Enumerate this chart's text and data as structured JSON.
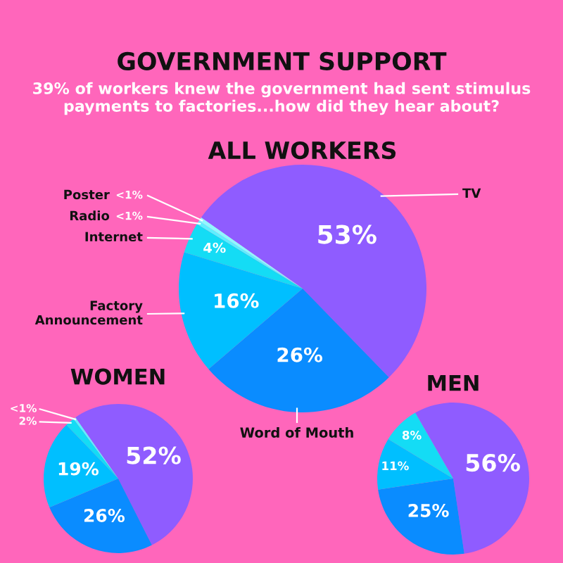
{
  "chart_data": [
    {
      "type": "pie",
      "title": "ALL WORKERS",
      "annotations": [
        "GOVERNMENT SUPPORT",
        "39% of workers knew the government had sent stimulus payments to factories...how did they hear about?"
      ],
      "categories": [
        "TV",
        "Word of Mouth",
        "Factory Announcement",
        "Internet",
        "Radio",
        "Poster"
      ],
      "values": [
        53,
        26,
        16,
        4,
        0.5,
        0.5
      ],
      "value_labels": [
        "53%",
        "26%",
        "16%",
        "4%",
        "<1%",
        "<1%"
      ],
      "colors": [
        "#8f5cff",
        "#0a8cff",
        "#00bfff",
        "#14dcf5",
        "#5ef0ff",
        "#8ff8ff"
      ]
    },
    {
      "type": "pie",
      "title": "WOMEN",
      "categories": [
        null,
        null,
        null,
        null,
        null
      ],
      "values": [
        52,
        26,
        19,
        2,
        0.5
      ],
      "value_labels": [
        "52%",
        "26%",
        "19%",
        "2%",
        "<1%"
      ],
      "colors": [
        "#8f5cff",
        "#0a8cff",
        "#00bfff",
        "#14dcf5",
        "#5ef0ff"
      ]
    },
    {
      "type": "pie",
      "title": "MEN",
      "categories": [
        null,
        null,
        null,
        null
      ],
      "values": [
        56,
        25,
        11,
        8
      ],
      "value_labels": [
        "56%",
        "25%",
        "11%",
        "8%"
      ],
      "colors": [
        "#8f5cff",
        "#0a8cff",
        "#00bfff",
        "#14dcf5"
      ]
    }
  ]
}
